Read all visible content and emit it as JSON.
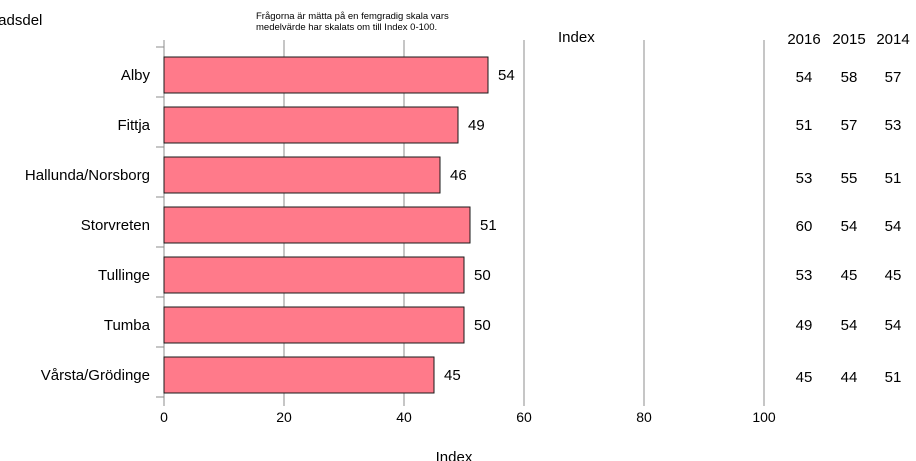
{
  "chart_data": {
    "type": "bar",
    "orientation": "horizontal",
    "category_axis_title": "Stadsdel",
    "note_lines": [
      "Frågorna är mätta på en femgradig skala vars",
      "medelvärde har skalats om till Index 0-100."
    ],
    "top_axis_title": "Index",
    "xlabel": "Index",
    "xlim": [
      0,
      100
    ],
    "x_ticks": [
      0,
      20,
      40,
      60,
      80,
      100
    ],
    "grid": "vertical",
    "bar_color": "#ff7a8a",
    "categories": [
      "Alby",
      "Fittja",
      "Hallunda/Norsborg",
      "Storvreten",
      "Tullinge",
      "Tumba",
      "Vårsta/Grödinge"
    ],
    "values": [
      54,
      49,
      46,
      51,
      50,
      50,
      45
    ],
    "comparison_table": {
      "headers": [
        "2016",
        "2015",
        "2014"
      ],
      "rows": [
        [
          "54",
          "58",
          "57"
        ],
        [
          "51",
          "57",
          "53"
        ],
        [
          "53",
          "55",
          "51"
        ],
        [
          "60",
          "54",
          "54"
        ],
        [
          "53",
          "45",
          "45"
        ],
        [
          "49",
          "54",
          "54"
        ],
        [
          "45",
          "44",
          "51"
        ]
      ]
    }
  }
}
